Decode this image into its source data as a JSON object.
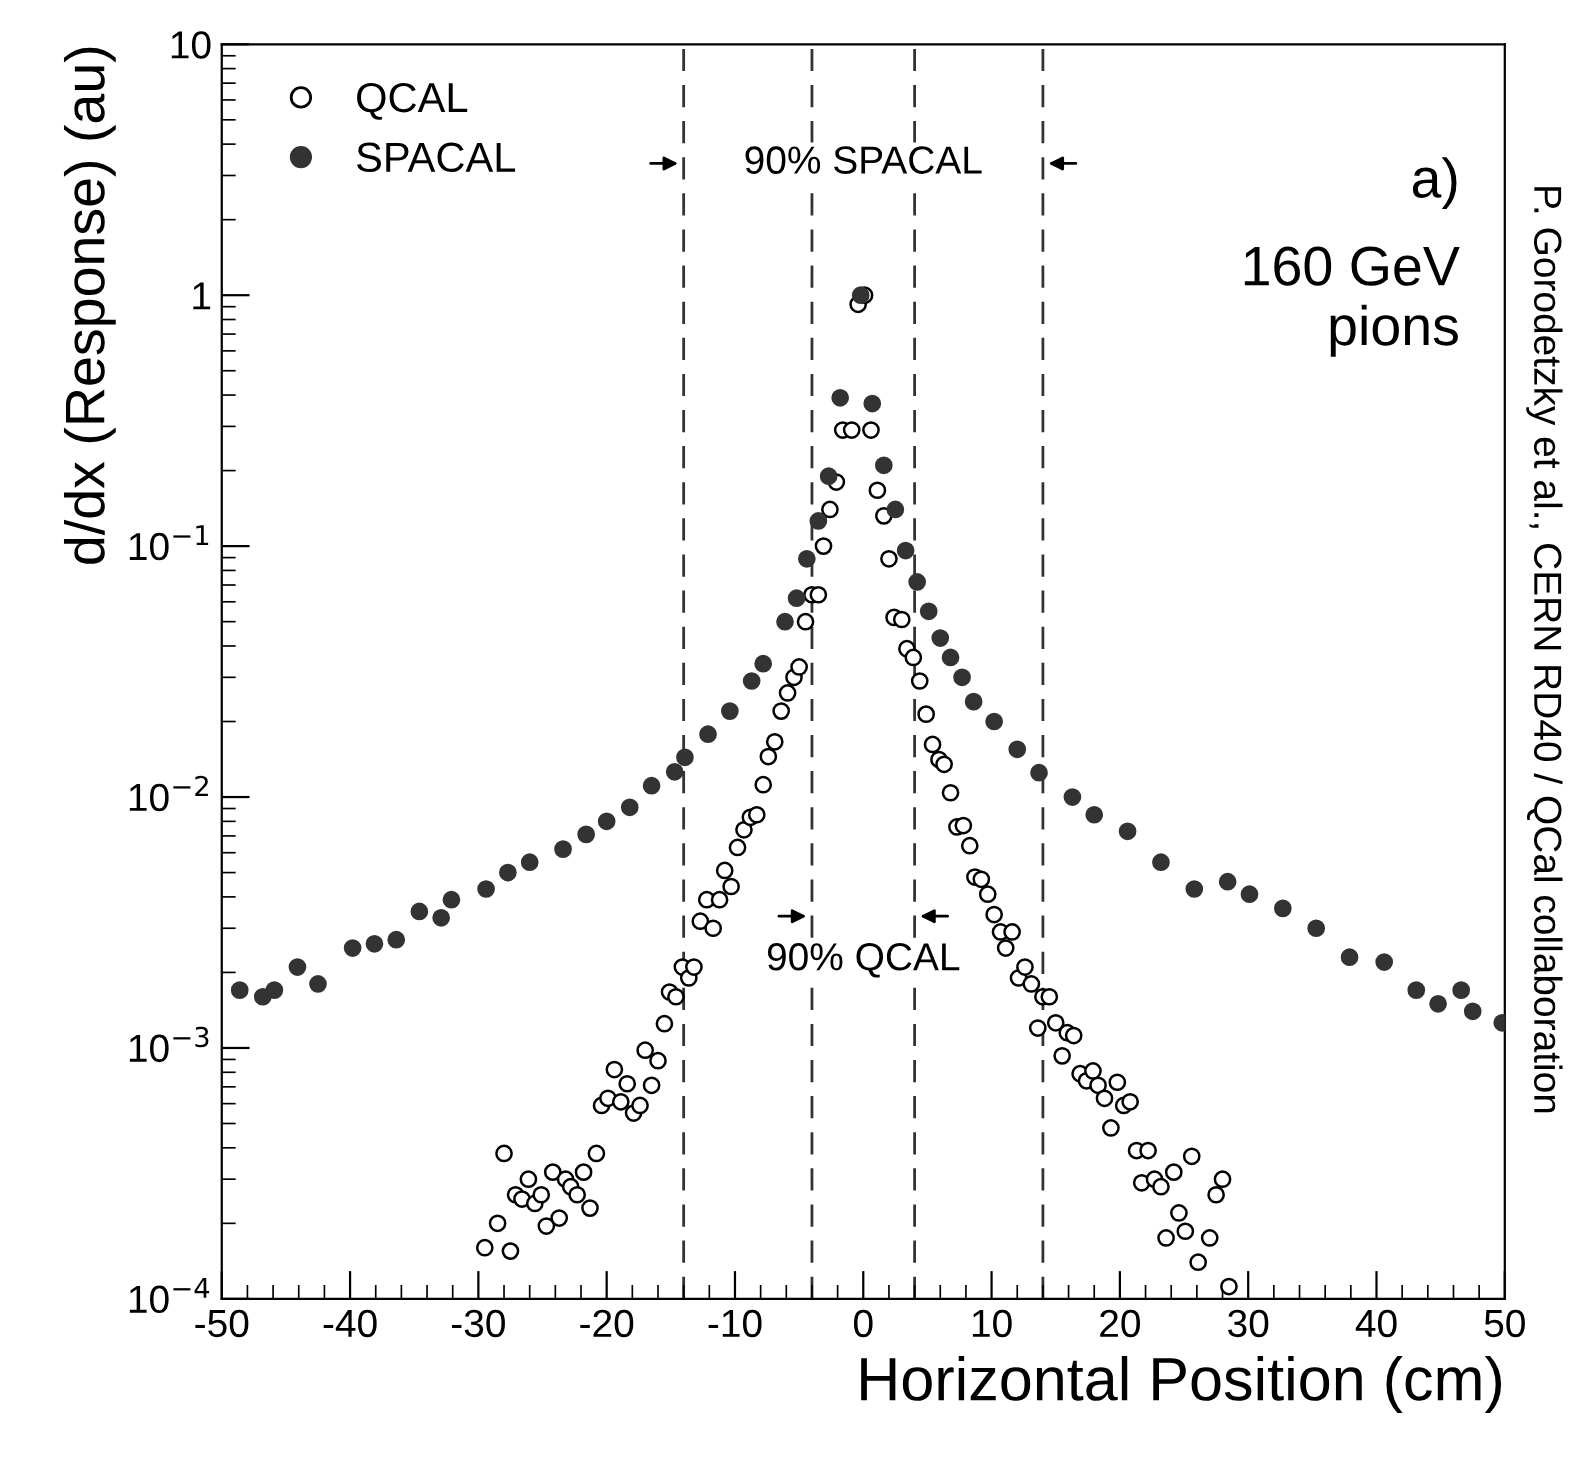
{
  "chart_data": {
    "type": "scatter",
    "xlabel": "Horizontal Position (cm)",
    "ylabel": "d/dx (Response) (au)",
    "log": "y",
    "xlim": [
      -50,
      50
    ],
    "xticks": [
      -50,
      -40,
      -30,
      -20,
      -10,
      0,
      10,
      20,
      30,
      40,
      50
    ],
    "ylim": [
      0.0001,
      10
    ],
    "yticks": [
      {
        "value": 0.0001,
        "label": "10$^{−4}$"
      },
      {
        "value": 0.001,
        "label": "10$^{−3}$"
      },
      {
        "value": 0.01,
        "label": "10$^{−2}$"
      },
      {
        "value": 0.1,
        "label": "10$^{−1}$"
      },
      1,
      10
    ],
    "grid": false,
    "legend": "top left",
    "marker": "circle",
    "series": [
      {
        "name": "QCAL",
        "color": "#000000",
        "x": [
          -29.5,
          -28.5,
          -28.0,
          -27.5,
          -27.1,
          -26.6,
          -26.1,
          -25.6,
          -25.1,
          -24.7,
          -24.2,
          -23.7,
          -23.2,
          -22.8,
          -22.3,
          -21.8,
          -21.3,
          -20.8,
          -20.4,
          -19.9,
          -19.4,
          -18.9,
          -18.4,
          -17.9,
          -17.4,
          -17.0,
          -16.5,
          -16.0,
          -15.5,
          -15.1,
          -14.6,
          -14.1,
          -13.6,
          -13.2,
          -12.7,
          -12.2,
          -11.7,
          -11.2,
          -10.8,
          -10.3,
          -9.8,
          -9.3,
          -8.8,
          -8.3,
          -7.8,
          -7.4,
          -6.9,
          -6.4,
          -5.9,
          -5.4,
          -5.0,
          -4.5,
          -4.0,
          -3.5,
          -3.1,
          -2.6,
          -2.1,
          -1.6,
          -0.9,
          -0.4,
          0.1,
          0.6,
          1.1,
          1.6,
          2.0,
          2.4,
          3.0,
          3.4,
          3.9,
          4.4,
          4.9,
          5.4,
          5.9,
          6.3,
          6.8,
          7.3,
          7.8,
          8.3,
          8.7,
          9.2,
          9.7,
          10.2,
          10.7,
          11.1,
          11.6,
          12.1,
          12.6,
          13.1,
          13.6,
          14.0,
          14.5,
          15.0,
          15.5,
          15.9,
          16.4,
          16.9,
          17.4,
          17.9,
          18.3,
          18.8,
          19.3,
          19.8,
          20.3,
          20.8,
          21.3,
          21.7,
          22.2,
          22.7,
          23.2,
          23.6,
          24.2,
          24.6,
          25.1,
          25.6,
          26.1,
          27.0,
          27.5,
          28.0,
          28.5
        ],
        "values": [
          0.00016,
          0.0002,
          0.00038,
          0.000155,
          0.00026,
          0.00025,
          0.0003,
          0.00024,
          0.00026,
          0.000195,
          0.00032,
          0.00021,
          0.0003,
          0.00028,
          0.00026,
          0.00032,
          0.00023,
          0.00038,
          0.00059,
          0.00063,
          0.00082,
          0.00061,
          0.00072,
          0.00055,
          0.00059,
          0.00098,
          0.00071,
          0.00089,
          0.00125,
          0.00167,
          0.0016,
          0.0021,
          0.0019,
          0.0021,
          0.0032,
          0.0039,
          0.003,
          0.0039,
          0.0051,
          0.0044,
          0.0063,
          0.0074,
          0.0083,
          0.0085,
          0.0112,
          0.0145,
          0.0166,
          0.022,
          0.026,
          0.03,
          0.033,
          0.05,
          0.064,
          0.064,
          0.1,
          0.14,
          0.18,
          0.29,
          0.29,
          0.92,
          1.0,
          0.29,
          0.167,
          0.132,
          0.089,
          0.052,
          0.051,
          0.039,
          0.036,
          0.029,
          0.0214,
          0.0162,
          0.0141,
          0.0135,
          0.0104,
          0.0076,
          0.0077,
          0.0064,
          0.0048,
          0.0047,
          0.0041,
          0.0034,
          0.0029,
          0.0025,
          0.0029,
          0.0019,
          0.0021,
          0.0018,
          0.0012,
          0.0016,
          0.0016,
          0.00126,
          0.00093,
          0.00115,
          0.00112,
          0.00079,
          0.00074,
          0.00081,
          0.00071,
          0.00063,
          0.00048,
          0.00073,
          0.00059,
          0.00061,
          0.00039,
          0.00029,
          0.00039,
          0.0003,
          0.00028,
          0.000175,
          0.00032,
          0.00022,
          0.000186,
          0.00037,
          0.00014,
          0.000175,
          0.00026,
          0.0003,
          0.000112
        ]
      },
      {
        "name": "SPACAL",
        "color": "#333333",
        "x": [
          -48.6,
          -46.8,
          -45.9,
          -44.1,
          -42.5,
          -39.8,
          -38.1,
          -36.4,
          -34.6,
          -32.9,
          -32.1,
          -29.4,
          -27.7,
          -26.0,
          -23.4,
          -21.6,
          -20.0,
          -18.2,
          -16.5,
          -14.7,
          -13.9,
          -12.1,
          -10.4,
          -8.7,
          -7.8,
          -6.1,
          -5.2,
          -4.4,
          -3.5,
          -2.7,
          -1.8,
          -0.2,
          0.7,
          1.6,
          2.5,
          3.3,
          4.2,
          5.1,
          6.0,
          6.8,
          7.7,
          8.6,
          10.2,
          12.0,
          13.7,
          16.3,
          18.0,
          20.6,
          23.2,
          25.8,
          28.4,
          30.1,
          32.7,
          35.3,
          37.9,
          40.6,
          43.1,
          44.8,
          46.6,
          47.5,
          49.8
        ],
        "values": [
          0.0017,
          0.0016,
          0.0017,
          0.0021,
          0.0018,
          0.0025,
          0.0026,
          0.0027,
          0.0035,
          0.0033,
          0.0039,
          0.0043,
          0.005,
          0.0055,
          0.0062,
          0.0071,
          0.008,
          0.0091,
          0.0111,
          0.0126,
          0.0144,
          0.0178,
          0.022,
          0.029,
          0.034,
          0.05,
          0.062,
          0.089,
          0.126,
          0.19,
          0.39,
          1.0,
          0.37,
          0.21,
          0.14,
          0.096,
          0.072,
          0.055,
          0.043,
          0.036,
          0.03,
          0.024,
          0.02,
          0.0155,
          0.0125,
          0.01,
          0.0085,
          0.0073,
          0.0055,
          0.0043,
          0.0046,
          0.0041,
          0.0036,
          0.003,
          0.0023,
          0.0022,
          0.0017,
          0.0015,
          0.0017,
          0.0014,
          0.00126
        ]
      }
    ],
    "ref_lines": [
      {
        "axis": "x",
        "value": -14,
        "line_style": "dashed"
      },
      {
        "axis": "x",
        "value": 14,
        "line_style": "dashed"
      },
      {
        "axis": "x",
        "value": -4,
        "line_style": "dashed"
      },
      {
        "axis": "x",
        "value": 4,
        "line_style": "dashed"
      }
    ],
    "annotations": [
      "90% SPACAL",
      "90% QCAL",
      "a)",
      "160 GeV\npions",
      "P. Gorodetzky et al., CERN RD40 / QCal collaboration"
    ]
  }
}
